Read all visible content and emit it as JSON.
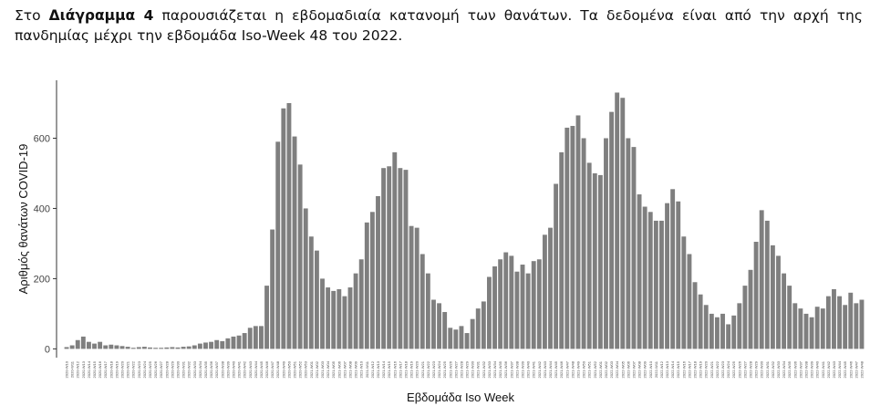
{
  "intro": {
    "before": "Στο ",
    "bold": "Διάγραμμα 4",
    "after": " παρουσιάζεται η εβδομαδιαία κατανομή των θανάτων.  Τα δεδομένα είναι από την αρχή της πανδημίας μέχρι την εβδομάδα Iso-Week 48 του 2022."
  },
  "chart_data": {
    "type": "bar",
    "x_label": "Εβδομάδα Iso Week",
    "y_label": "Αριθμός θανάτων COVID-19",
    "color": "#7f7f7f",
    "grid": false,
    "ylim": [
      -25,
      765
    ],
    "yticks": [
      0,
      200,
      400,
      600
    ],
    "categories": [
      "2020-W10",
      "2020-W11",
      "2020-W12",
      "2020-W13",
      "2020-W14",
      "2020-W15",
      "2020-W16",
      "2020-W17",
      "2020-W18",
      "2020-W19",
      "2020-W20",
      "2020-W21",
      "2020-W22",
      "2020-W23",
      "2020-W24",
      "2020-W25",
      "2020-W26",
      "2020-W27",
      "2020-W28",
      "2020-W29",
      "2020-W30",
      "2020-W31",
      "2020-W32",
      "2020-W33",
      "2020-W34",
      "2020-W35",
      "2020-W36",
      "2020-W37",
      "2020-W38",
      "2020-W39",
      "2020-W40",
      "2020-W41",
      "2020-W42",
      "2020-W43",
      "2020-W44",
      "2020-W45",
      "2020-W46",
      "2020-W47",
      "2020-W48",
      "2020-W49",
      "2020-W50",
      "2020-W51",
      "2020-W52",
      "2020-W53",
      "2021-W01",
      "2021-W02",
      "2021-W03",
      "2021-W04",
      "2021-W05",
      "2021-W06",
      "2021-W07",
      "2021-W08",
      "2021-W09",
      "2021-W10",
      "2021-W11",
      "2021-W12",
      "2021-W13",
      "2021-W14",
      "2021-W15",
      "2021-W16",
      "2021-W17",
      "2021-W18",
      "2021-W19",
      "2021-W20",
      "2021-W21",
      "2021-W22",
      "2021-W23",
      "2021-W24",
      "2021-W25",
      "2021-W26",
      "2021-W27",
      "2021-W28",
      "2021-W29",
      "2021-W30",
      "2021-W31",
      "2021-W32",
      "2021-W33",
      "2021-W34",
      "2021-W35",
      "2021-W36",
      "2021-W37",
      "2021-W38",
      "2021-W39",
      "2021-W40",
      "2021-W41",
      "2021-W42",
      "2021-W43",
      "2021-W44",
      "2021-W45",
      "2021-W46",
      "2021-W47",
      "2021-W48",
      "2021-W49",
      "2021-W50",
      "2021-W51",
      "2021-W52",
      "2022-W01",
      "2022-W02",
      "2022-W03",
      "2022-W04",
      "2022-W05",
      "2022-W06",
      "2022-W07",
      "2022-W08",
      "2022-W09",
      "2022-W10",
      "2022-W11",
      "2022-W12",
      "2022-W13",
      "2022-W14",
      "2022-W15",
      "2022-W16",
      "2022-W17",
      "2022-W18",
      "2022-W19",
      "2022-W20",
      "2022-W21",
      "2022-W22",
      "2022-W23",
      "2022-W24",
      "2022-W25",
      "2022-W26",
      "2022-W27",
      "2022-W28",
      "2022-W29",
      "2022-W30",
      "2022-W31",
      "2022-W32",
      "2022-W33",
      "2022-W34",
      "2022-W35",
      "2022-W36",
      "2022-W37",
      "2022-W38",
      "2022-W39",
      "2022-W40",
      "2022-W41",
      "2022-W42",
      "2022-W43",
      "2022-W44",
      "2022-W45",
      "2022-W46",
      "2022-W47",
      "2022-W48"
    ],
    "values": [
      5,
      10,
      25,
      35,
      20,
      15,
      20,
      10,
      12,
      10,
      8,
      6,
      3,
      5,
      6,
      4,
      3,
      3,
      4,
      5,
      4,
      6,
      7,
      10,
      15,
      18,
      20,
      25,
      22,
      30,
      35,
      38,
      45,
      60,
      65,
      65,
      180,
      340,
      590,
      685,
      700,
      605,
      525,
      400,
      320,
      280,
      200,
      175,
      165,
      170,
      150,
      175,
      215,
      255,
      360,
      390,
      435,
      515,
      520,
      560,
      515,
      510,
      350,
      345,
      270,
      215,
      140,
      130,
      105,
      60,
      55,
      65,
      45,
      85,
      115,
      135,
      205,
      235,
      255,
      275,
      265,
      220,
      240,
      215,
      250,
      255,
      325,
      345,
      470,
      560,
      630,
      635,
      665,
      600,
      530,
      500,
      495,
      600,
      675,
      730,
      715,
      600,
      575,
      440,
      405,
      390,
      365,
      365,
      415,
      455,
      420,
      320,
      270,
      190,
      155,
      125,
      100,
      90,
      100,
      70,
      95,
      130,
      180,
      225,
      305,
      395,
      365,
      295,
      265,
      215,
      180,
      130,
      115,
      100,
      90,
      120,
      115,
      150,
      170,
      150,
      125,
      160,
      130,
      140
    ]
  }
}
